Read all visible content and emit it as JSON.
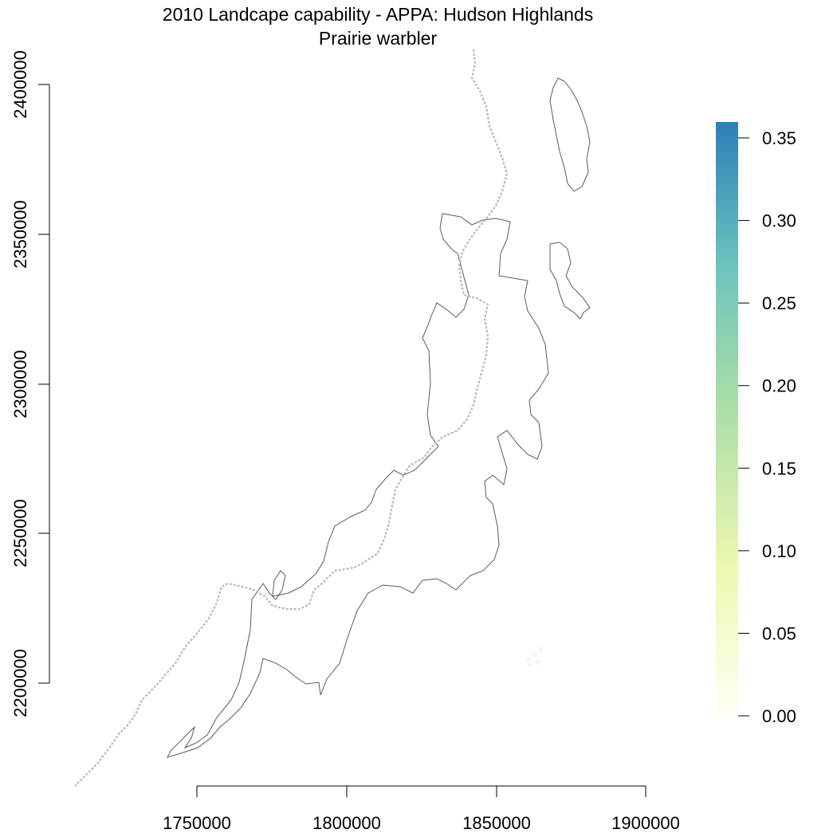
{
  "title": {
    "line1": "2010 Landcape capability - APPA: Hudson Highlands",
    "line2": "Prairie warbler"
  },
  "x_axis": {
    "ticks": [
      "1750000",
      "1800000",
      "1850000",
      "1900000"
    ]
  },
  "y_axis": {
    "ticks": [
      "2200000",
      "2250000",
      "2300000",
      "2350000",
      "2400000"
    ]
  },
  "legend": {
    "ticks": [
      "0.00",
      "0.05",
      "0.10",
      "0.15",
      "0.20",
      "0.25",
      "0.30",
      "0.35"
    ],
    "colors": {
      "low": "#fffff5",
      "lowmid": "#edf8b0",
      "mid": "#a3dba8",
      "highmid": "#6ec5bd",
      "high": "#2c7fb8"
    }
  },
  "map": {
    "boundary_color": "#5a5a5a",
    "trail_color": "#b8b8b8"
  }
}
